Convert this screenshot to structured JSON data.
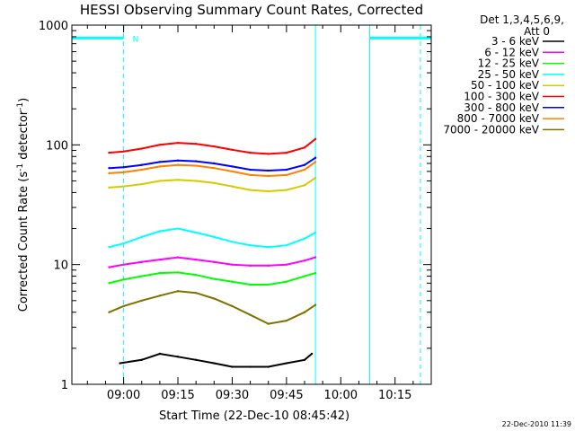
{
  "chart_data": {
    "type": "line",
    "title": "HESSI Observing Summary Count Rates, Corrected",
    "xlabel": "Start Time (22-Dec-10 08:45:42)",
    "ylabel_main": "Corrected Count Rate (s",
    "ylabel_sup1": "-1",
    "ylabel_mid": " detector",
    "ylabel_sup2": "-1",
    "ylabel_end": ")",
    "yscale": "log",
    "ylim": [
      1,
      1000
    ],
    "xlim": [
      "08:45:42",
      "10:25:00"
    ],
    "x_ticks": [
      "09:00",
      "09:15",
      "09:30",
      "09:45",
      "10:00",
      "10:15"
    ],
    "y_ticks": [
      "1",
      "10",
      "100",
      "1000"
    ],
    "legend_header": [
      "Det 1,3,4,5,6,9,",
      "Att 0"
    ],
    "legend_position": "right",
    "series": [
      {
        "name": "3 - 6 keV",
        "color": "#000000",
        "x": [
          "08:59",
          "09:05",
          "09:10",
          "09:15",
          "09:20",
          "09:25",
          "09:30",
          "09:35",
          "09:40",
          "09:45",
          "09:50",
          "09:52"
        ],
        "y": [
          1.5,
          1.6,
          1.8,
          1.7,
          1.6,
          1.5,
          1.4,
          1.4,
          1.4,
          1.5,
          1.6,
          1.8
        ]
      },
      {
        "name": "6 - 12 keV",
        "color": "#ff00ff",
        "x": [
          "08:56",
          "09:00",
          "09:05",
          "09:10",
          "09:15",
          "09:20",
          "09:25",
          "09:30",
          "09:35",
          "09:40",
          "09:45",
          "09:50",
          "09:53"
        ],
        "y": [
          9.5,
          10,
          10.5,
          11,
          11.5,
          11,
          10.5,
          10,
          9.8,
          9.8,
          10,
          10.8,
          11.5
        ]
      },
      {
        "name": "12 - 25 keV",
        "color": "#00ff00",
        "x": [
          "08:56",
          "09:00",
          "09:05",
          "09:10",
          "09:15",
          "09:20",
          "09:25",
          "09:30",
          "09:35",
          "09:40",
          "09:45",
          "09:50",
          "09:53"
        ],
        "y": [
          7,
          7.5,
          8,
          8.5,
          8.6,
          8.2,
          7.6,
          7.2,
          6.8,
          6.8,
          7.2,
          8,
          8.5
        ]
      },
      {
        "name": "25 - 50 keV",
        "color": "#00ffff",
        "x": [
          "08:56",
          "09:00",
          "09:05",
          "09:10",
          "09:15",
          "09:20",
          "09:25",
          "09:30",
          "09:35",
          "09:40",
          "09:45",
          "09:50",
          "09:53"
        ],
        "y": [
          14,
          15,
          17,
          19,
          20,
          18.5,
          17,
          15.5,
          14.5,
          14,
          14.5,
          16.5,
          18.5
        ]
      },
      {
        "name": "50 - 100 keV",
        "color": "#d4cc00",
        "x": [
          "08:56",
          "09:00",
          "09:05",
          "09:10",
          "09:15",
          "09:20",
          "09:25",
          "09:30",
          "09:35",
          "09:40",
          "09:45",
          "09:50",
          "09:53"
        ],
        "y": [
          44,
          45,
          47,
          50,
          51,
          50,
          48,
          45,
          42,
          41,
          42,
          46,
          53
        ]
      },
      {
        "name": "100 - 300 keV",
        "color": "#ff0000",
        "x": [
          "08:56",
          "09:00",
          "09:05",
          "09:10",
          "09:15",
          "09:20",
          "09:25",
          "09:30",
          "09:35",
          "09:40",
          "09:45",
          "09:50",
          "09:53"
        ],
        "y": [
          86,
          88,
          93,
          100,
          104,
          102,
          97,
          91,
          86,
          84,
          86,
          95,
          112
        ]
      },
      {
        "name": "300 - 800 keV",
        "color": "#0000ff",
        "x": [
          "08:56",
          "09:00",
          "09:05",
          "09:10",
          "09:15",
          "09:20",
          "09:25",
          "09:30",
          "09:35",
          "09:40",
          "09:45",
          "09:50",
          "09:53"
        ],
        "y": [
          64,
          65,
          68,
          72,
          74,
          73,
          70,
          66,
          62,
          61,
          62,
          68,
          78
        ]
      },
      {
        "name": "800 - 7000 keV",
        "color": "#ff8000",
        "x": [
          "08:56",
          "09:00",
          "09:05",
          "09:10",
          "09:15",
          "09:20",
          "09:25",
          "09:30",
          "09:35",
          "09:40",
          "09:45",
          "09:50",
          "09:53"
        ],
        "y": [
          58,
          59,
          62,
          66,
          68,
          67,
          64,
          60,
          56,
          55,
          56,
          62,
          72
        ]
      },
      {
        "name": "7000 - 20000 keV",
        "color": "#807000",
        "x": [
          "08:56",
          "09:00",
          "09:05",
          "09:10",
          "09:15",
          "09:20",
          "09:25",
          "09:30",
          "09:35",
          "09:40",
          "09:45",
          "09:50",
          "09:53"
        ],
        "y": [
          4,
          4.5,
          5,
          5.5,
          6,
          5.8,
          5.2,
          4.5,
          3.8,
          3.2,
          3.4,
          4,
          4.6
        ]
      }
    ],
    "annotations": [
      {
        "text": "N",
        "x": "09:01",
        "y": 780,
        "color": "#00ffff"
      }
    ],
    "markers": {
      "color": "#00ffff",
      "night_bars": [
        [
          "08:45:42",
          "09:00"
        ],
        [
          "10:08",
          "10:25"
        ]
      ],
      "night_bar_level": 780,
      "solid_lines": [
        "08:45:42",
        "09:53",
        "10:08"
      ],
      "dashed_lines": [
        "09:00",
        "10:22"
      ]
    },
    "grid": false,
    "footer_timestamp": "22-Dec-2010 11:39"
  }
}
